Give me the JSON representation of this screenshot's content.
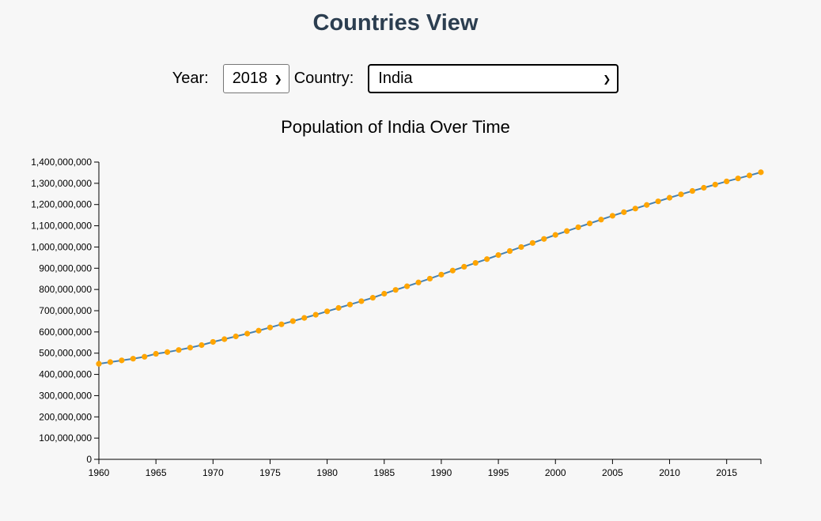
{
  "header": {
    "title": "Countries View"
  },
  "controls": {
    "year_label": "Year:",
    "year_value": "2018",
    "country_label": "Country:",
    "country_value": "India"
  },
  "chart_data": {
    "type": "line",
    "title": "Population of India Over Time",
    "xlabel": "",
    "ylabel": "",
    "x": [
      1960,
      1961,
      1962,
      1963,
      1964,
      1965,
      1966,
      1967,
      1968,
      1969,
      1970,
      1971,
      1972,
      1973,
      1974,
      1975,
      1976,
      1977,
      1978,
      1979,
      1980,
      1981,
      1982,
      1983,
      1984,
      1985,
      1986,
      1987,
      1988,
      1989,
      1990,
      1991,
      1992,
      1993,
      1994,
      1995,
      1996,
      1997,
      1998,
      1999,
      2000,
      2001,
      2002,
      2003,
      2004,
      2005,
      2006,
      2007,
      2008,
      2009,
      2010,
      2011,
      2012,
      2013,
      2014,
      2015,
      2016,
      2017,
      2018
    ],
    "series": [
      {
        "values": [
          450000000,
          458000000,
          466000000,
          474000000,
          483000000,
          497000000,
          505000000,
          515000000,
          526000000,
          538000000,
          553000000,
          566000000,
          579000000,
          592000000,
          606000000,
          621000000,
          636000000,
          651000000,
          666000000,
          681000000,
          697000000,
          713000000,
          729000000,
          745000000,
          761000000,
          780000000,
          798000000,
          815000000,
          833000000,
          851000000,
          870000000,
          889000000,
          907000000,
          925000000,
          943000000,
          962000000,
          981000000,
          1000000000,
          1019000000,
          1038000000,
          1057000000,
          1075000000,
          1093000000,
          1111000000,
          1129000000,
          1147000000,
          1164000000,
          1181000000,
          1198000000,
          1215000000,
          1232000000,
          1248000000,
          1264000000,
          1279000000,
          1294000000,
          1309000000,
          1323000000,
          1337000000,
          1352000000
        ]
      }
    ],
    "ylim": [
      0,
      1400000000
    ],
    "xlim": [
      1960,
      2018
    ],
    "y_ticks": [
      0,
      100000000,
      200000000,
      300000000,
      400000000,
      500000000,
      600000000,
      700000000,
      800000000,
      900000000,
      1000000000,
      1100000000,
      1200000000,
      1300000000,
      1400000000
    ],
    "x_ticks": [
      1960,
      1965,
      1970,
      1975,
      1980,
      1985,
      1990,
      1995,
      2000,
      2005,
      2010,
      2015
    ],
    "line_color": "#4682b4",
    "point_color": "#ffa500",
    "grid": false,
    "legend": "none"
  }
}
